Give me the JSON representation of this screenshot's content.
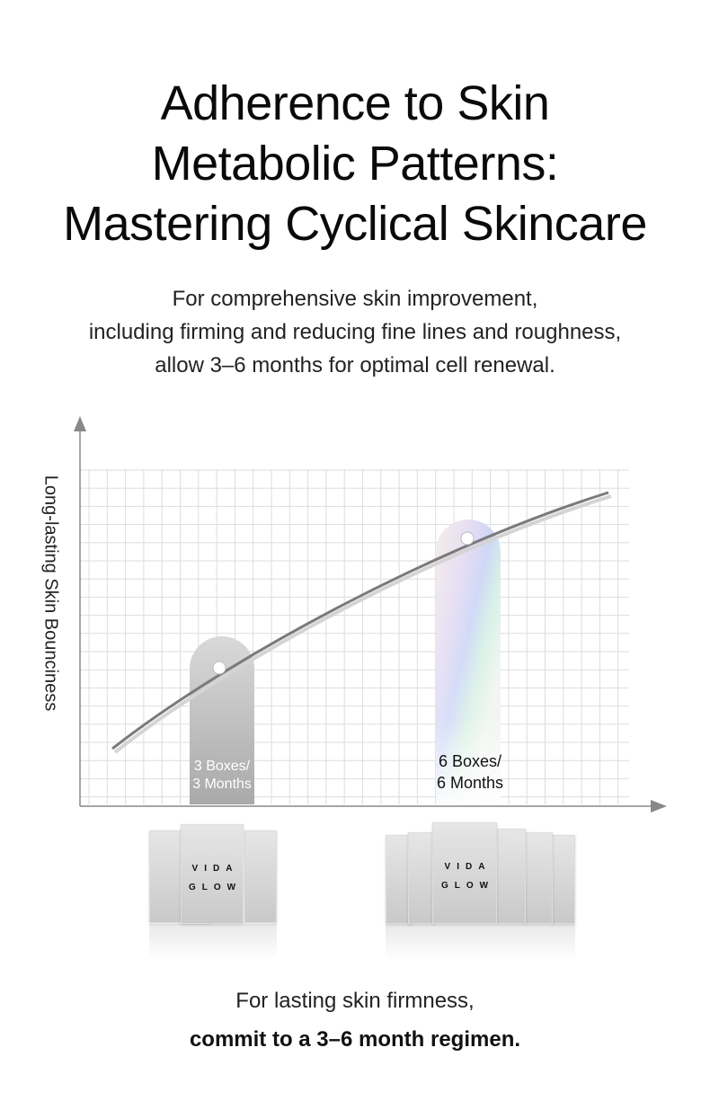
{
  "title_lines": [
    "Adherence to Skin",
    "Metabolic Patterns:",
    "Mastering Cyclical Skincare"
  ],
  "subtitle_lines": [
    "For comprehensive skin improvement,",
    "including firming and reducing fine lines and roughness,",
    "allow 3–6 months for optimal cell renewal."
  ],
  "chart_data": {
    "type": "line",
    "ylabel": "Long-lasting Skin Bounciness",
    "xlabel": "",
    "grid": true,
    "markers": [
      {
        "label_line1": "3 Boxes/",
        "label_line2": "3 Months",
        "style": "gray"
      },
      {
        "label_line1": "6 Boxes/",
        "label_line2": "6 Months",
        "style": "iridescent"
      }
    ]
  },
  "product": {
    "brand_line1": "VIDA",
    "brand_line2": "GLOW",
    "group_3_count": 3,
    "group_6_count": 6
  },
  "footer": {
    "line1": "For lasting skin firmness,",
    "line2": "commit to a 3–6 month regimen."
  },
  "colors": {
    "curve": "#777777",
    "grid": "#dddddd",
    "axis": "#888888"
  }
}
